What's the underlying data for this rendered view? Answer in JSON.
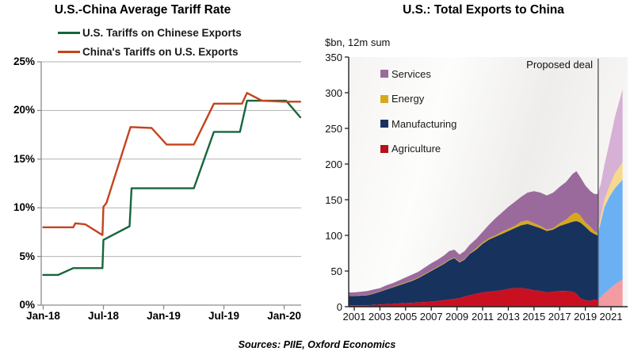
{
  "page": {
    "sources_label": "Sources: PIIE, Oxford Economics"
  },
  "chart_data": [
    {
      "type": "line",
      "title": "U.S.-China Average Tariff Rate",
      "x_axis": {
        "tick_labels": [
          "Jan-18",
          "Jul-18",
          "Jan-19",
          "Jul-19",
          "Jan-20"
        ],
        "tick_positions_months": [
          0,
          6,
          12,
          18,
          24
        ],
        "range_months": [
          0,
          25.7
        ]
      },
      "y_axis": {
        "ticks": [
          0,
          5,
          10,
          15,
          20,
          25
        ],
        "suffix": "%",
        "range": [
          0,
          25
        ]
      },
      "grid": "horizontal",
      "series": [
        {
          "name": "U.S. Tariffs on Chinese Exports",
          "color": "#17663b",
          "points_month_pct": [
            [
              0,
              3.1
            ],
            [
              1.5,
              3.1
            ],
            [
              3,
              3.8
            ],
            [
              5.9,
              3.8
            ],
            [
              6,
              6.7
            ],
            [
              8.6,
              8.1
            ],
            [
              8.8,
              12
            ],
            [
              15,
              12
            ],
            [
              17,
              17.8
            ],
            [
              19.6,
              17.8
            ],
            [
              20.3,
              21
            ],
            [
              24.2,
              21
            ],
            [
              25.6,
              19.3
            ]
          ]
        },
        {
          "name": "China's Tariffs on U.S. Exports",
          "color": "#c5431d",
          "points_month_pct": [
            [
              0,
              8
            ],
            [
              3,
              8
            ],
            [
              3.2,
              8.4
            ],
            [
              4.2,
              8.3
            ],
            [
              5.9,
              7.2
            ],
            [
              6,
              10.1
            ],
            [
              6.3,
              10.5
            ],
            [
              8.7,
              18.3
            ],
            [
              10.8,
              18.2
            ],
            [
              12.3,
              16.5
            ],
            [
              15,
              16.5
            ],
            [
              17,
              20.7
            ],
            [
              19.8,
              20.7
            ],
            [
              20.3,
              21.8
            ],
            [
              21.8,
              21
            ],
            [
              24,
              20.9
            ],
            [
              25.6,
              20.9
            ]
          ]
        }
      ]
    },
    {
      "type": "stacked_area",
      "title": "U.S.: Total Exports to China",
      "y_axis_label": "$bn, 12m sum",
      "y_axis": {
        "ticks": [
          0,
          50,
          100,
          150,
          200,
          250,
          300,
          350
        ],
        "range": [
          0,
          350
        ]
      },
      "x_axis": {
        "tick_years": [
          2001,
          2003,
          2005,
          2007,
          2009,
          2011,
          2013,
          2015,
          2017,
          2019,
          2021
        ],
        "range": [
          2000.6,
          2021.9
        ]
      },
      "annotation": {
        "text": "Proposed deal",
        "x_year": 2020
      },
      "legend": [
        {
          "name": "Services",
          "color": "#9a6a9d"
        },
        {
          "name": "Energy",
          "color": "#d5a820"
        },
        {
          "name": "Manufacturing",
          "color": "#18325e"
        },
        {
          "name": "Agriculture",
          "color": "#b5121c"
        }
      ],
      "stack_order": [
        "agriculture",
        "manufacturing",
        "energy",
        "services"
      ],
      "historical": {
        "colors": {
          "agriculture": "#c81021",
          "manufacturing": "#18325e",
          "energy": "#d5a820",
          "services": "#9a6a9d"
        },
        "x_years": [
          2000.6,
          2001,
          2001.5,
          2002,
          2002.5,
          2003,
          2003.5,
          2004,
          2004.5,
          2005,
          2005.5,
          2006,
          2006.5,
          2007,
          2007.5,
          2008,
          2008.4,
          2008.8,
          2009.2,
          2009.6,
          2010,
          2010.5,
          2011,
          2011.5,
          2012,
          2012.5,
          2013,
          2013.5,
          2014,
          2014.5,
          2015,
          2015.5,
          2016,
          2016.5,
          2017,
          2017.5,
          2018,
          2018.3,
          2018.6,
          2019,
          2019.4,
          2019.7,
          2019.95
        ],
        "values": {
          "agriculture": [
            2,
            2,
            2,
            2,
            2.5,
            3,
            3.5,
            4,
            4.5,
            5,
            5.5,
            6,
            6.5,
            7,
            8,
            9,
            10,
            11,
            12,
            14,
            16,
            18,
            20,
            21,
            22,
            23,
            25,
            26,
            26,
            25,
            23,
            22,
            20,
            21,
            22,
            22,
            21,
            18,
            12,
            9,
            8,
            10,
            10
          ],
          "manufacturing": [
            13,
            13,
            13.5,
            14,
            15.5,
            18,
            20.5,
            23,
            25.5,
            28,
            30.5,
            34,
            38.5,
            43,
            47,
            51,
            55,
            57,
            50,
            52,
            58,
            62,
            68,
            73,
            76,
            79,
            81,
            84,
            88,
            91,
            90,
            88,
            86,
            87,
            91,
            94,
            98,
            102,
            106,
            103,
            97,
            92,
            90
          ],
          "energy": [
            0.5,
            0.5,
            0.5,
            0.5,
            0.5,
            0.5,
            0.5,
            0.5,
            1,
            1,
            1,
            1,
            1,
            1,
            1,
            1,
            1,
            1,
            1,
            1,
            1,
            2,
            2,
            2,
            2,
            3,
            3,
            3,
            5,
            5,
            4,
            3,
            2,
            2,
            4,
            6,
            11,
            12,
            10,
            6,
            7,
            4,
            3
          ],
          "services": [
            4.5,
            4.5,
            5,
            5.5,
            5.5,
            4.5,
            5.5,
            5.5,
            6,
            7,
            8,
            8,
            9,
            10,
            10,
            11,
            12,
            11,
            10,
            11,
            12,
            13,
            15,
            19,
            24,
            27,
            31,
            34,
            35,
            39,
            45,
            47,
            48,
            50,
            51,
            53,
            56,
            58,
            54,
            52,
            50,
            52,
            55
          ]
        }
      },
      "projection": {
        "colors": {
          "agriculture": "#f29ba1",
          "manufacturing": "#6cb0f4",
          "energy": "#f6d98d",
          "services": "#d7b0d5"
        },
        "x_years": [
          2019.95,
          2020.2,
          2020.5,
          2020.9,
          2021.3,
          2021.9
        ],
        "values": {
          "agriculture": [
            10,
            13,
            19,
            25,
            31,
            38
          ],
          "manufacturing": [
            90,
            105,
            121,
            130,
            135,
            140
          ],
          "energy": [
            3,
            8,
            11,
            15,
            21,
            24
          ],
          "services": [
            55,
            46,
            49,
            62,
            79,
            103
          ]
        }
      }
    }
  ]
}
